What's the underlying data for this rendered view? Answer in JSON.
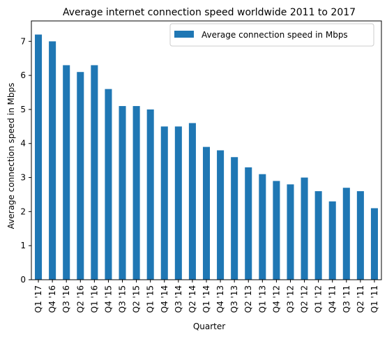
{
  "chart_data": {
    "type": "bar",
    "title": "Average internet connection speed worldwide 2011 to 2017",
    "xlabel": "Quarter",
    "ylabel": "Average connection speed in Mbps",
    "ylim": [
      0,
      7.6
    ],
    "yticks": [
      0,
      1,
      2,
      3,
      4,
      5,
      6,
      7
    ],
    "legend_position": "top-right",
    "grid": false,
    "bar_color": "#1f77b4",
    "categories": [
      "Q1 '17",
      "Q4 '16",
      "Q3 '16",
      "Q2 '16",
      "Q1 '16",
      "Q4 '15",
      "Q3 '15",
      "Q2 '15",
      "Q1 '15",
      "Q4 '14",
      "Q3 '14",
      "Q2 '14",
      "Q1 '14",
      "Q4 '13",
      "Q3 '13",
      "Q2 '13",
      "Q1 '13",
      "Q4 '12",
      "Q3 '12",
      "Q2 '12",
      "Q1 '12",
      "Q4 '11",
      "Q3 '11",
      "Q2 '11",
      "Q1 '11"
    ],
    "series": [
      {
        "name": "Average connection speed in Mbps",
        "values": [
          7.2,
          7.0,
          6.3,
          6.1,
          6.3,
          5.6,
          5.1,
          5.1,
          5.0,
          4.5,
          4.5,
          4.6,
          3.9,
          3.8,
          3.6,
          3.3,
          3.1,
          2.9,
          2.8,
          3.0,
          2.6,
          2.3,
          2.7,
          2.6,
          2.1
        ]
      }
    ]
  }
}
